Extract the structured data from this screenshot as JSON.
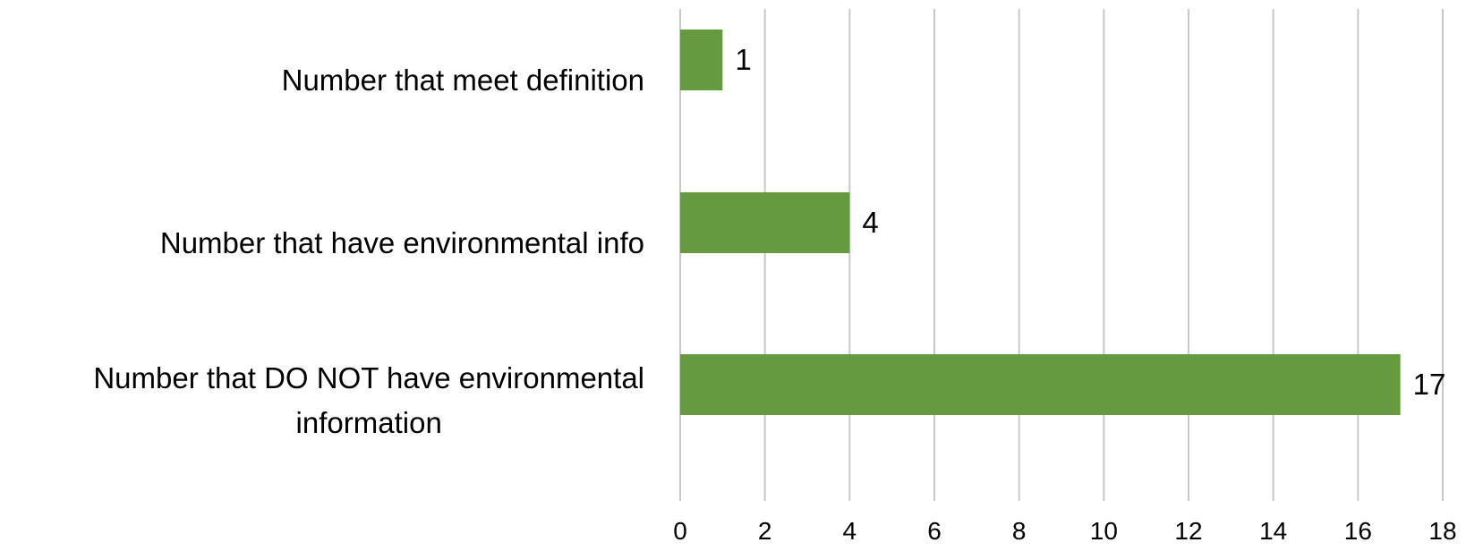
{
  "chart_data": {
    "type": "bar",
    "orientation": "horizontal",
    "categories": [
      [
        "Number that meet definition"
      ],
      [
        "Number that have environmental info"
      ],
      [
        "Number that DO NOT have environmental",
        "information"
      ]
    ],
    "values": [
      1,
      4,
      17
    ],
    "data_labels": [
      "1",
      "4",
      "17"
    ],
    "xlim": [
      0,
      18
    ],
    "x_ticks": [
      0,
      2,
      4,
      6,
      8,
      10,
      12,
      14,
      16,
      18
    ],
    "x_tick_labels": [
      "0",
      "2",
      "4",
      "6",
      "8",
      "10",
      "12",
      "14",
      "16",
      "18"
    ],
    "grid": true,
    "legend": false,
    "title": "",
    "xlabel": "",
    "ylabel": "",
    "colors": {
      "bar": "#659A41",
      "grid": "#C8C8C8",
      "text": "#000000"
    }
  }
}
